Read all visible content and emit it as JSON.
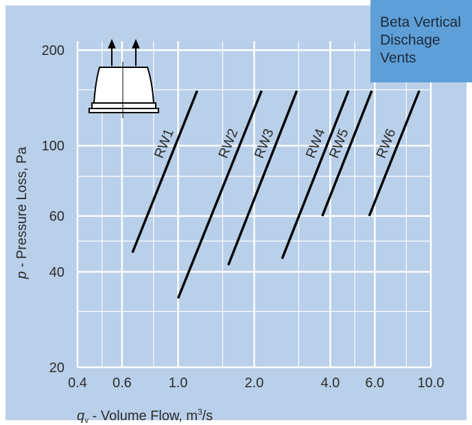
{
  "chart_data": {
    "type": "line",
    "title": "Beta Vertical Dischage Vents",
    "x_label": {
      "symbol": "q",
      "subscript": "v",
      "text": " - Volume Flow, m",
      "superscript": "3",
      "suffix": "/s"
    },
    "y_label": {
      "symbol": "p",
      "text": " - Pressure Loss, Pa"
    },
    "log_x": true,
    "log_y": true,
    "grid": true,
    "xlim": [
      0.4,
      10
    ],
    "ylim": [
      20,
      200
    ],
    "xticks": [
      0.4,
      {
        "value": 0.6,
        "label": "0.6"
      },
      {
        "value": 1,
        "label": "1.0"
      },
      {
        "value": 2,
        "label": "2.0"
      },
      {
        "value": 4,
        "label": "4.0"
      },
      {
        "value": 6,
        "label": "6.0"
      },
      {
        "value": 10,
        "label": "10.0"
      }
    ],
    "minor_xticks": [
      0.5,
      0.8,
      1.5,
      3,
      5,
      8
    ],
    "yticks": [
      20,
      40,
      60,
      100,
      200
    ],
    "minor_yticks": [
      30,
      50,
      80,
      150
    ],
    "series": [
      {
        "name": "RW1",
        "color": "#000000",
        "x": [
          0.66,
          1.19
        ],
        "values": [
          46,
          149
        ]
      },
      {
        "name": "RW2",
        "color": "#000000",
        "x": [
          1.0,
          2.14
        ],
        "values": [
          33,
          149
        ]
      },
      {
        "name": "RW3",
        "color": "#000000",
        "x": [
          1.58,
          2.95
        ],
        "values": [
          42,
          149
        ]
      },
      {
        "name": "RW4",
        "color": "#000000",
        "x": [
          2.58,
          4.72
        ],
        "values": [
          44,
          149
        ]
      },
      {
        "name": "RW5",
        "color": "#000000",
        "x": [
          3.72,
          5.84
        ],
        "values": [
          60,
          149
        ]
      },
      {
        "name": "RW6",
        "color": "#000000",
        "x": [
          5.7,
          9.0
        ],
        "values": [
          60,
          149
        ]
      }
    ]
  }
}
